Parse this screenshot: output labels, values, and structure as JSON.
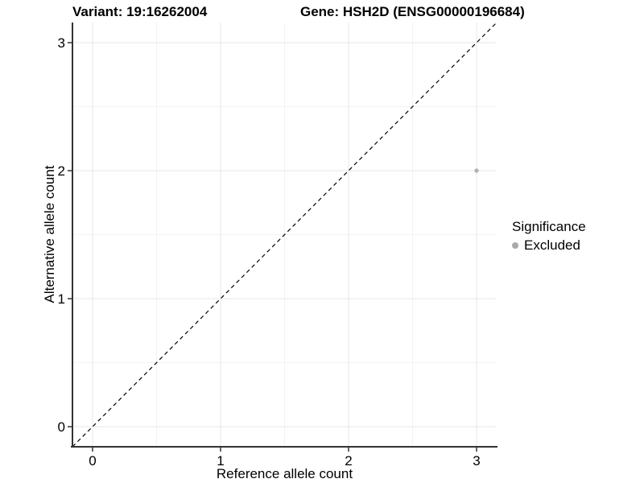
{
  "header": {
    "variant_title": "Variant: 19:16262004",
    "gene_title": "Gene: HSH2D (ENSG00000196684)"
  },
  "legend": {
    "title": "Significance",
    "items": [
      {
        "label": "Excluded",
        "color": "#aaaaaa"
      }
    ]
  },
  "colors": {
    "background": "#ffffff",
    "text": "#000000",
    "axis_line": "#333333",
    "tick_mark": "#333333",
    "grid_major": "#e7e7e7",
    "grid_minor": "#f3f3f3",
    "reference_line": "#000000",
    "point": "#b2b2b2"
  },
  "chart_data": {
    "type": "scatter",
    "title": "Variant: 19:16262004 — Gene: HSH2D (ENSG00000196684)",
    "xlabel": "Reference allele count",
    "ylabel": "Alternative allele count",
    "xlim": [
      -0.157,
      3.157
    ],
    "ylim": [
      -0.157,
      3.157
    ],
    "x_ticks": [
      0,
      1,
      2,
      3
    ],
    "y_ticks": [
      0,
      1,
      2,
      3
    ],
    "x_minor_ticks": [
      0.5,
      1.5,
      2.5
    ],
    "y_minor_ticks": [
      0.5,
      1.5,
      2.5
    ],
    "grid": "major and minor, light gray on white",
    "legend_position": "right",
    "reference_line": {
      "type": "identity y=x",
      "style": "dashed",
      "color": "#000000"
    },
    "series": [
      {
        "name": "Excluded",
        "color": "#b2b2b2",
        "points": [
          {
            "x": 3,
            "y": 2
          }
        ]
      }
    ]
  }
}
